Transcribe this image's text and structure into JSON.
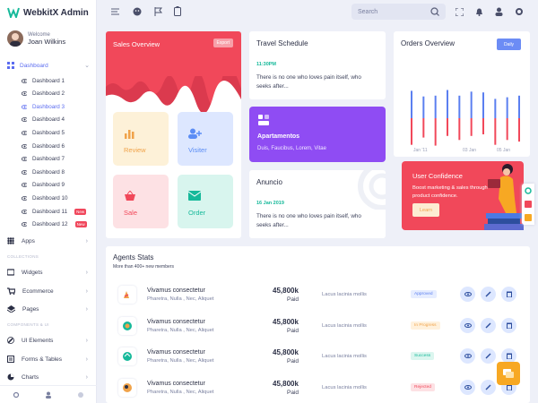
{
  "app": {
    "title": "WebkitX Admin"
  },
  "user": {
    "welcome": "Welcome",
    "name": "Joan Wilkins"
  },
  "sidebar": {
    "dashboard": {
      "label": "Dashboard"
    },
    "sub_items": [
      {
        "label": "Dashboard 1"
      },
      {
        "label": "Dashboard 2"
      },
      {
        "label": "Dashboard 3",
        "active": true
      },
      {
        "label": "Dashboard 4"
      },
      {
        "label": "Dashboard 5"
      },
      {
        "label": "Dashboard 6"
      },
      {
        "label": "Dashboard 7"
      },
      {
        "label": "Dashboard 8"
      },
      {
        "label": "Dashboard 9"
      },
      {
        "label": "Dashboard 10"
      },
      {
        "label": "Dashboard 11",
        "badge": "New"
      },
      {
        "label": "Dashboard 12",
        "badge": "New"
      }
    ],
    "apps": "Apps",
    "section_collections": "COLLECTIONS",
    "widgets": "Widgets",
    "ecommerce": "Ecommerce",
    "pages": "Pages",
    "section_components": "COMPONENTS & UI",
    "ui_elements": "UI Elements",
    "forms_tables": "Forms & Tables",
    "charts": "Charts"
  },
  "topbar": {
    "search_placeholder": "Search"
  },
  "sales": {
    "title": "Sales Overview",
    "export": "Export",
    "tiles": [
      {
        "label": "Review",
        "color": "#f0a34a"
      },
      {
        "label": "Visiter",
        "color": "#5b8df5"
      },
      {
        "label": "Sale",
        "color": "#f1485a"
      },
      {
        "label": "Order",
        "color": "#16b99a"
      }
    ]
  },
  "travel": {
    "title": "Travel Schedule",
    "time": "11:30PM",
    "text": "There is no one who loves pain itself, who seeks after..."
  },
  "apartamentos": {
    "title": "Apartamentos",
    "text": "Duis, Faucibus, Lorem, Vitae"
  },
  "anuncio": {
    "title": "Anuncio",
    "date": "16 Jan 2019",
    "text": "There is no one who loves pain itself, who seeks after..."
  },
  "orders": {
    "title": "Orders Overview",
    "button": "Daily"
  },
  "chart_data": {
    "type": "bar",
    "categories": [
      "Jan '11",
      "",
      "",
      "",
      "",
      "03 Jan",
      "",
      "",
      "05 Jan",
      ""
    ],
    "x_tick_labels": [
      "Jan '11",
      "03 Jan",
      "05 Jan"
    ],
    "series": [
      {
        "values": [
          34,
          27,
          28,
          35,
          28,
          33,
          32,
          24,
          26,
          28
        ],
        "color": "#5b7ff0"
      },
      {
        "values": [
          -33,
          -24,
          -34,
          -22,
          -27,
          -22,
          -20,
          -33,
          -27,
          -29
        ],
        "color": "#f1485a"
      }
    ],
    "ylim": [
      -40,
      40
    ]
  },
  "confidence": {
    "title": "User Confidence",
    "text": "Boost marketing & sales through product confidence.",
    "button": "Learn"
  },
  "agents": {
    "title": "Agents Stats",
    "subtitle": "More than 400+ new members",
    "rows": [
      {
        "name": "Vivamus consectetur",
        "desc": "Pharetra, Nulla , Nec, Aliquet",
        "price": "45,800k",
        "paid": "Paid",
        "note": "Lacus lacinia mollis",
        "status": "Approved",
        "status_color": "#5b7ff0",
        "status_bg": "#e6edff"
      },
      {
        "name": "Vivamus consectetur",
        "desc": "Pharetra, Nulla , Nec, Aliquet",
        "price": "45,800k",
        "paid": "Paid",
        "note": "Lacus lacinia mollis",
        "status": "In Progress",
        "status_color": "#f0a34a",
        "status_bg": "#fff1dc"
      },
      {
        "name": "Vivamus consectetur",
        "desc": "Pharetra, Nulla , Nec, Aliquet",
        "price": "45,800k",
        "paid": "Paid",
        "note": "Lacus lacinia mollis",
        "status": "Success",
        "status_color": "#16b99a",
        "status_bg": "#dbf6ef"
      },
      {
        "name": "Vivamus consectetur",
        "desc": "Pharetra, Nulla , Nec, Aliquet",
        "price": "45,800k",
        "paid": "Paid",
        "note": "Lacus lacinia mollis",
        "status": "Rejected",
        "status_color": "#f1485a",
        "status_bg": "#fde1e4"
      }
    ]
  }
}
